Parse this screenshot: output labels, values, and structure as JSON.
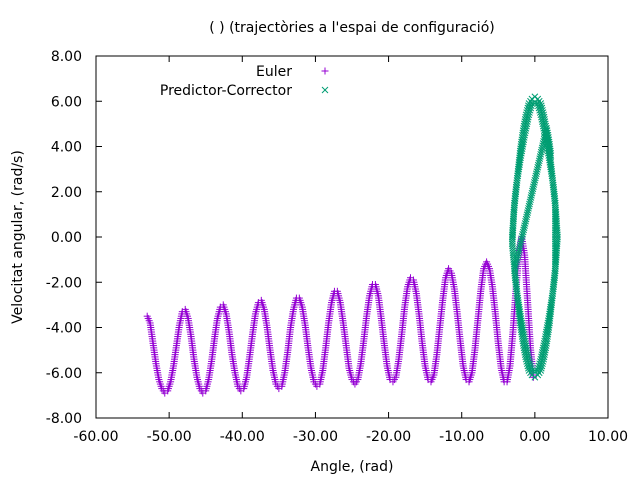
{
  "chart_data": {
    "type": "scatter",
    "title": "(  ) (trajectòries a l'espai de configuració)",
    "xlabel": "Angle,   (rad)",
    "ylabel": "Velocitat angular,   (rad/s)",
    "xlim": [
      -60,
      10
    ],
    "ylim": [
      -8,
      8
    ],
    "x_ticks": [
      -60,
      -50,
      -40,
      -30,
      -20,
      -10,
      0,
      10
    ],
    "x_tick_labels": [
      "-60.00",
      "-50.00",
      "-40.00",
      "-30.00",
      "-20.00",
      "-10.00",
      "0.00",
      "10.00"
    ],
    "y_ticks": [
      -8,
      -6,
      -4,
      -2,
      0,
      2,
      4,
      6,
      8
    ],
    "y_tick_labels": [
      "-8.00",
      "-6.00",
      "-4.00",
      "-2.00",
      "0.00",
      "2.00",
      "4.00",
      "6.00",
      "8.00"
    ],
    "grid": false,
    "legend_position": "top-right",
    "series": [
      {
        "name": "Euler",
        "marker": "+",
        "color": "#9400d3",
        "x": [
          -53.0,
          -52.6,
          -52.2,
          -51.8,
          -51.4,
          -51.0,
          -50.6,
          -50.2,
          -49.8,
          -49.4,
          -49.0,
          -48.6,
          -48.2,
          -47.8,
          -47.4,
          -47.0,
          -46.6,
          -46.2,
          -45.8,
          -45.4,
          -45.0,
          -44.6,
          -44.2,
          -43.8,
          -43.4,
          -43.0,
          -42.6,
          -42.2,
          -41.8,
          -41.4,
          -41.0,
          -40.6,
          -40.2,
          -39.8,
          -39.4,
          -39.0,
          -38.6,
          -38.2,
          -37.8,
          -37.4,
          -37.0,
          -36.6,
          -36.2,
          -35.8,
          -35.4,
          -35.0,
          -34.6,
          -34.2,
          -33.8,
          -33.4,
          -33.0,
          -32.6,
          -32.2,
          -31.8,
          -31.4,
          -31.0,
          -30.6,
          -30.2,
          -29.8,
          -29.4,
          -29.0,
          -28.6,
          -28.2,
          -27.8,
          -27.4,
          -27.0,
          -26.6,
          -26.2,
          -25.8,
          -25.4,
          -25.0,
          -24.6,
          -24.2,
          -23.8,
          -23.4,
          -23.0,
          -22.6,
          -22.2,
          -21.8,
          -21.4,
          -21.0,
          -20.6,
          -20.2,
          -19.8,
          -19.4,
          -19.0,
          -18.6,
          -18.2,
          -17.8,
          -17.4,
          -17.0,
          -16.6,
          -16.2,
          -15.8,
          -15.4,
          -15.0,
          -14.6,
          -14.2,
          -13.8,
          -13.4,
          -13.0,
          -12.6,
          -12.2,
          -11.8,
          -11.4,
          -11.0,
          -10.6,
          -10.2,
          -9.8,
          -9.4,
          -9.0,
          -8.6,
          -8.2,
          -7.8,
          -7.4,
          -7.0,
          -6.6,
          -6.2,
          -5.8,
          -5.4,
          -5.0,
          -4.6,
          -4.2,
          -3.8,
          -3.4,
          -3.0,
          -2.6,
          -2.2,
          -1.8,
          -1.4,
          -1.0,
          -0.6,
          -0.2
        ],
        "y": [
          -3.5,
          -3.8,
          -4.7,
          -5.6,
          -6.3,
          -6.7,
          -6.9,
          -6.8,
          -6.4,
          -5.7,
          -4.8,
          -3.9,
          -3.3,
          -3.2,
          -3.6,
          -4.4,
          -5.4,
          -6.2,
          -6.7,
          -6.9,
          -6.8,
          -6.3,
          -5.5,
          -4.5,
          -3.6,
          -3.1,
          -3.0,
          -3.4,
          -4.2,
          -5.2,
          -6.0,
          -6.6,
          -6.8,
          -6.7,
          -6.2,
          -5.3,
          -4.3,
          -3.4,
          -2.9,
          -2.8,
          -3.2,
          -4.0,
          -5.0,
          -5.9,
          -6.5,
          -6.7,
          -6.6,
          -6.0,
          -5.1,
          -4.0,
          -3.2,
          -2.7,
          -2.7,
          -3.1,
          -3.9,
          -4.9,
          -5.8,
          -6.4,
          -6.6,
          -6.5,
          -5.9,
          -4.9,
          -3.8,
          -2.9,
          -2.4,
          -2.4,
          -2.9,
          -3.8,
          -4.8,
          -5.8,
          -6.3,
          -6.5,
          -6.3,
          -5.6,
          -4.6,
          -3.5,
          -2.6,
          -2.1,
          -2.1,
          -2.6,
          -3.6,
          -4.7,
          -5.7,
          -6.3,
          -6.4,
          -6.2,
          -5.4,
          -4.3,
          -3.1,
          -2.2,
          -1.8,
          -1.9,
          -2.5,
          -3.5,
          -4.7,
          -5.7,
          -6.3,
          -6.4,
          -6.1,
          -5.2,
          -4.0,
          -2.8,
          -1.8,
          -1.4,
          -1.6,
          -2.3,
          -3.4,
          -4.6,
          -5.7,
          -6.3,
          -6.4,
          -6.0,
          -5.0,
          -3.7,
          -2.4,
          -1.4,
          -1.1,
          -1.4,
          -2.2,
          -3.4,
          -4.7,
          -5.8,
          -6.4,
          -6.4,
          -5.7,
          -4.2,
          -2.4,
          -0.8,
          0.0,
          -0.8,
          -2.8,
          -4.9,
          -6.2
        ]
      },
      {
        "name": "Predictor-Corrector",
        "marker": "x",
        "color": "#009e73",
        "x": [
          -3.1,
          -2.9,
          -2.6,
          -2.3,
          -2.0,
          -1.6,
          -1.2,
          -0.8,
          -0.4,
          0.0,
          0.4,
          0.8,
          1.2,
          1.6,
          2.0,
          2.3,
          2.6,
          2.9,
          3.1,
          2.9,
          2.6,
          2.3,
          2.0,
          1.6,
          1.2,
          0.8,
          0.4,
          0.0,
          -0.4,
          -0.8,
          -1.2,
          -1.6,
          -2.0,
          -2.3,
          -2.6,
          -2.9,
          -3.1,
          -2.8,
          -2.4,
          -1.9,
          -1.4,
          -0.9,
          -0.4,
          0.4,
          0.9,
          1.4,
          1.9,
          2.4,
          2.8,
          2.8,
          2.4,
          1.9,
          1.4,
          0.9,
          0.4,
          -0.4,
          -0.9,
          -1.4,
          -1.9,
          -2.4,
          -2.8,
          1.6,
          1.8,
          2.0,
          2.2
        ],
        "y": [
          0.0,
          1.0,
          2.0,
          2.9,
          3.8,
          4.7,
          5.4,
          5.9,
          6.1,
          6.2,
          6.1,
          5.9,
          5.4,
          4.7,
          3.8,
          2.9,
          2.0,
          1.0,
          0.0,
          -1.0,
          -2.0,
          -2.9,
          -3.8,
          -4.7,
          -5.4,
          -5.9,
          -6.1,
          -6.2,
          -6.1,
          -5.9,
          -5.4,
          -4.7,
          -3.8,
          -2.9,
          -2.0,
          -1.0,
          -0.3,
          1.5,
          2.6,
          3.6,
          4.5,
          5.3,
          5.9,
          5.9,
          5.3,
          4.5,
          3.6,
          2.6,
          1.5,
          -1.5,
          -2.6,
          -3.6,
          -4.5,
          -5.3,
          -5.9,
          -5.9,
          -5.3,
          -4.5,
          -3.6,
          -2.6,
          -1.5,
          4.8,
          4.5,
          4.1,
          3.6
        ]
      }
    ]
  }
}
